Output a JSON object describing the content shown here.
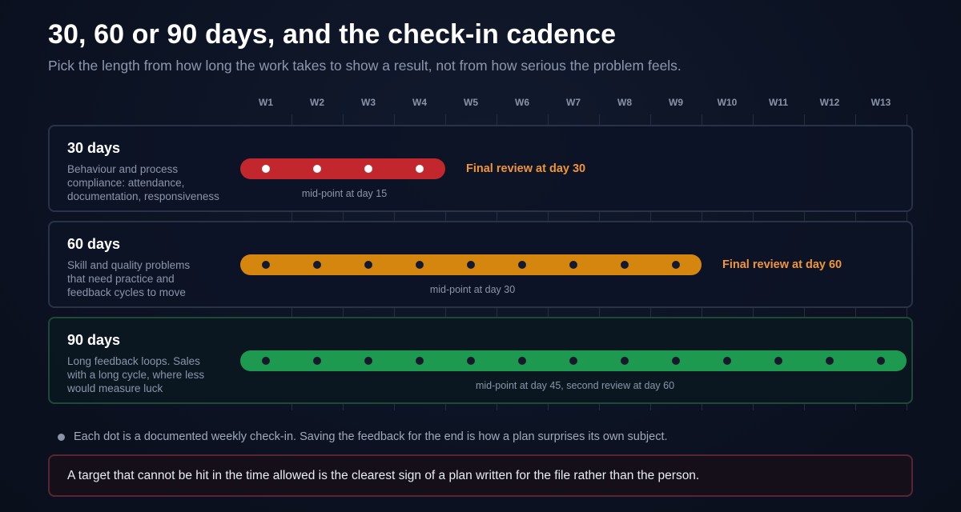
{
  "header": {
    "title": "30, 60 or 90 days, and the check-in cadence",
    "subtitle": "Pick the length from how long the work takes to show a result, not from how serious the problem feels."
  },
  "timeline": {
    "weeks": [
      "W1",
      "W2",
      "W3",
      "W4",
      "W5",
      "W6",
      "W7",
      "W8",
      "W9",
      "W10",
      "W11",
      "W12",
      "W13"
    ]
  },
  "plans": [
    {
      "title": "30 days",
      "description_lines": [
        "Behaviour and process",
        "compliance: attendance,",
        "documentation, responsiveness"
      ],
      "weeks": 4,
      "color": "#c1272d",
      "dot_color": "#ffffff",
      "final_review": "Final review at day 30",
      "midpoint": "mid-point at day 15"
    },
    {
      "title": "60 days",
      "description_lines": [
        "Skill and quality problems",
        "that need practice and",
        "feedback cycles to move"
      ],
      "weeks": 9,
      "color": "#d4860f",
      "dot_color": "#141a2a",
      "final_review": "Final review at day 60",
      "midpoint": "mid-point at day 30"
    },
    {
      "title": "90 days",
      "description_lines": [
        "Long feedback loops. Sales",
        "with a long cycle, where less",
        "would measure luck"
      ],
      "weeks": 13,
      "color": "#1e9a50",
      "dot_color": "#141a2a",
      "final_review": "",
      "midpoint": "mid-point at day 45, second review at day 60"
    }
  ],
  "legend": {
    "text": "Each dot is a documented weekly check-in. Saving the feedback for the end is how a plan surprises its own subject."
  },
  "callout": {
    "text": "A target that cannot be hit in the time allowed is the clearest sign of a plan written for the file rather than the person."
  }
}
